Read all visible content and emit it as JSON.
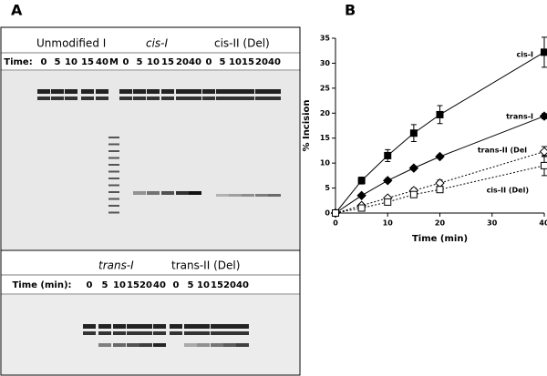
{
  "panel_a": {
    "label": "A",
    "top": {
      "headers": [
        "Unmodified  I",
        "cis-I",
        "cis-II (Del)"
      ],
      "time_label": "Time:",
      "lanes": [
        "0",
        "5",
        "10",
        "15",
        "40",
        "M",
        "0",
        "5",
        "10",
        "15",
        "20",
        "40",
        "0",
        "5",
        "10",
        "15",
        "20",
        "40"
      ]
    },
    "bottom": {
      "headers": [
        "trans-I",
        "trans-II (Del)"
      ],
      "time_label": "Time (min):",
      "lanes": [
        "0",
        "5",
        "10",
        "15",
        "20",
        "40",
        "0",
        "5",
        "10",
        "15",
        "20",
        "40"
      ]
    }
  },
  "chart_data": {
    "type": "line",
    "panel_label": "B",
    "x_label": "Time (min)",
    "y_label": "% Incision",
    "x": [
      0,
      5,
      10,
      15,
      20,
      40
    ],
    "xlim": [
      0,
      40
    ],
    "xticks": [
      0,
      10,
      20,
      30,
      40
    ],
    "ylim": [
      0,
      35
    ],
    "yticks": [
      0,
      5,
      10,
      15,
      20,
      25,
      30,
      35
    ],
    "series": [
      {
        "name": "cis-I",
        "color": "#000000",
        "marker": "square",
        "filled": true,
        "line_style": "solid",
        "values": [
          0,
          6.5,
          11.5,
          16,
          19.7,
          32.2
        ],
        "errors": [
          0,
          0.7,
          1.2,
          1.7,
          1.8,
          3
        ]
      },
      {
        "name": "trans-I",
        "color": "#000000",
        "marker": "diamond",
        "filled": true,
        "line_style": "solid",
        "values": [
          0,
          3.5,
          6.5,
          9,
          11.3,
          19.4
        ],
        "errors": [
          0,
          0.3,
          0.4,
          0.4,
          0.4,
          0.5
        ]
      },
      {
        "name": "trans-II (Del",
        "color": "#000000",
        "marker": "diamond",
        "filled": false,
        "line_style": "dotted",
        "values": [
          0,
          1.5,
          3,
          4.5,
          6,
          12.3
        ],
        "errors": [
          0,
          0.3,
          0.4,
          0.5,
          0.6,
          1
        ]
      },
      {
        "name": "cis-II (Del)",
        "color": "#000000",
        "marker": "square",
        "filled": false,
        "line_style": "dotted",
        "values": [
          0,
          1,
          2.2,
          3.7,
          4.7,
          9.5
        ],
        "errors": [
          0,
          0.2,
          0.3,
          0.4,
          0.5,
          2
        ]
      }
    ]
  }
}
